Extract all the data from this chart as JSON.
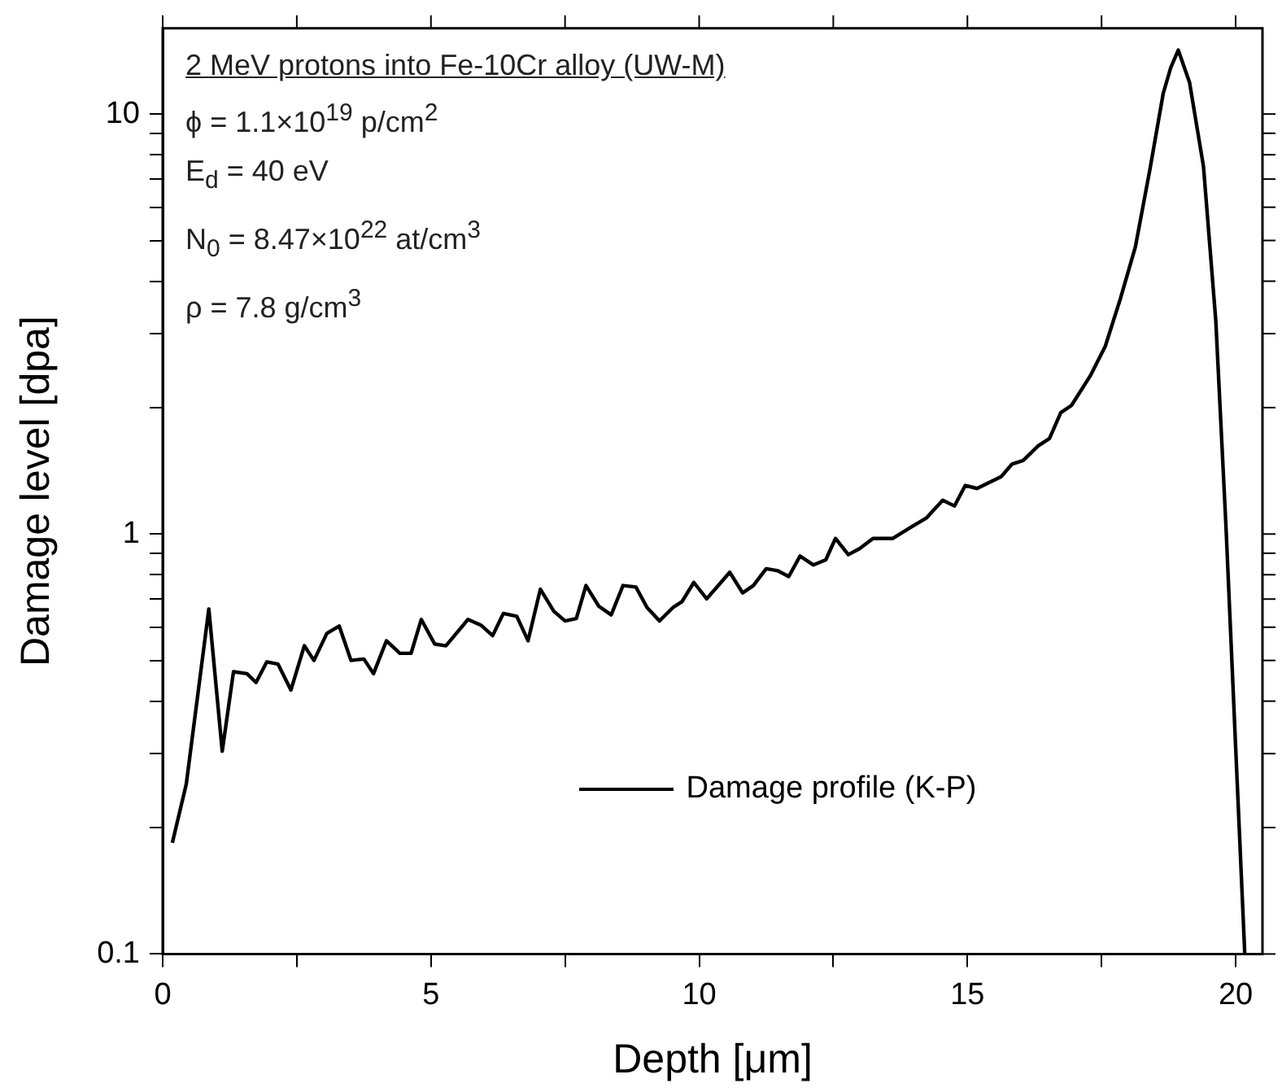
{
  "chart_data": {
    "type": "line",
    "xlabel": "Depth [μm]",
    "ylabel": "Damage level [dpa]",
    "annotations": [
      "2 MeV protons into Fe-10Cr alloy (UW-M)",
      "ϕ = 1.1×10$^{19}$ p/cm$^{2}$",
      "E$_{d}$ = 40 eV",
      "N$_{0}$ = 8.47×10$^{22}$ at/cm$^{3}$",
      "ρ = 7.8 g/cm$^{3}$"
    ],
    "log": "y",
    "grid": false,
    "legend": "bottom",
    "marker": "none",
    "line_style": "solid",
    "xlim": [
      0,
      20.5
    ],
    "xticks": [
      0,
      {
        "value": 2.5,
        "label": null
      },
      5,
      {
        "value": 7.5,
        "label": null
      },
      10,
      {
        "value": 12.5,
        "label": null
      },
      15,
      {
        "value": 17.5,
        "label": null
      },
      20
    ],
    "ylim": [
      0.1,
      16
    ],
    "yticks": [
      0.1,
      {
        "value": 0.2,
        "label": null
      },
      {
        "value": 0.3,
        "label": null
      },
      {
        "value": 0.4,
        "label": null
      },
      {
        "value": 0.5,
        "label": null
      },
      {
        "value": 0.6,
        "label": null
      },
      {
        "value": 0.7,
        "label": null
      },
      {
        "value": 0.8,
        "label": null
      },
      {
        "value": 0.9,
        "label": null
      },
      1,
      {
        "value": 2,
        "label": null
      },
      {
        "value": 3,
        "label": null
      },
      {
        "value": 4,
        "label": null
      },
      {
        "value": 5,
        "label": null
      },
      {
        "value": 6,
        "label": null
      },
      {
        "value": 7,
        "label": null
      },
      {
        "value": 8,
        "label": null
      },
      {
        "value": 9,
        "label": null
      },
      10
    ],
    "series": [
      {
        "name": "Damage profile (K-P)",
        "color": "#000000",
        "x": [
          0.18,
          0.44,
          0.86,
          1.11,
          1.32,
          1.57,
          1.74,
          1.94,
          2.15,
          2.39,
          2.64,
          2.82,
          3.06,
          3.29,
          3.51,
          3.75,
          3.93,
          4.17,
          4.42,
          4.63,
          4.82,
          5.07,
          5.28,
          5.69,
          5.93,
          6.15,
          6.35,
          6.6,
          6.81,
          7.04,
          7.29,
          7.5,
          7.71,
          7.89,
          8.13,
          8.36,
          8.58,
          8.82,
          9.03,
          9.26,
          9.51,
          9.68,
          9.9,
          10.14,
          10.38,
          10.57,
          10.81,
          11.01,
          11.25,
          11.46,
          11.67,
          11.88,
          12.13,
          12.36,
          12.54,
          12.78,
          12.99,
          13.24,
          13.61,
          13.96,
          14.24,
          14.54,
          14.76,
          14.96,
          15.18,
          15.63,
          15.83,
          16.04,
          16.32,
          16.53,
          16.74,
          16.94,
          17.29,
          17.57,
          17.85,
          18.13,
          18.4,
          18.65,
          18.79,
          18.93,
          19.14,
          19.4,
          19.63,
          19.82,
          20.0,
          20.17
        ],
        "values": [
          0.184,
          0.254,
          0.663,
          0.304,
          0.47,
          0.465,
          0.443,
          0.496,
          0.49,
          0.425,
          0.542,
          0.5,
          0.58,
          0.604,
          0.5,
          0.504,
          0.465,
          0.557,
          0.52,
          0.52,
          0.626,
          0.547,
          0.542,
          0.626,
          0.607,
          0.573,
          0.647,
          0.637,
          0.557,
          0.739,
          0.655,
          0.621,
          0.629,
          0.754,
          0.673,
          0.642,
          0.754,
          0.748,
          0.668,
          0.621,
          0.668,
          0.69,
          0.767,
          0.701,
          0.76,
          0.811,
          0.724,
          0.754,
          0.827,
          0.818,
          0.792,
          0.886,
          0.844,
          0.868,
          0.976,
          0.893,
          0.923,
          0.976,
          0.976,
          1.04,
          1.093,
          1.204,
          1.166,
          1.305,
          1.284,
          1.37,
          1.467,
          1.497,
          1.622,
          1.689,
          1.945,
          2.024,
          2.38,
          2.8,
          3.63,
          4.82,
          7.36,
          11.2,
          12.9,
          14.2,
          11.9,
          7.51,
          3.22,
          1.04,
          0.311,
          0.1
        ]
      }
    ]
  }
}
